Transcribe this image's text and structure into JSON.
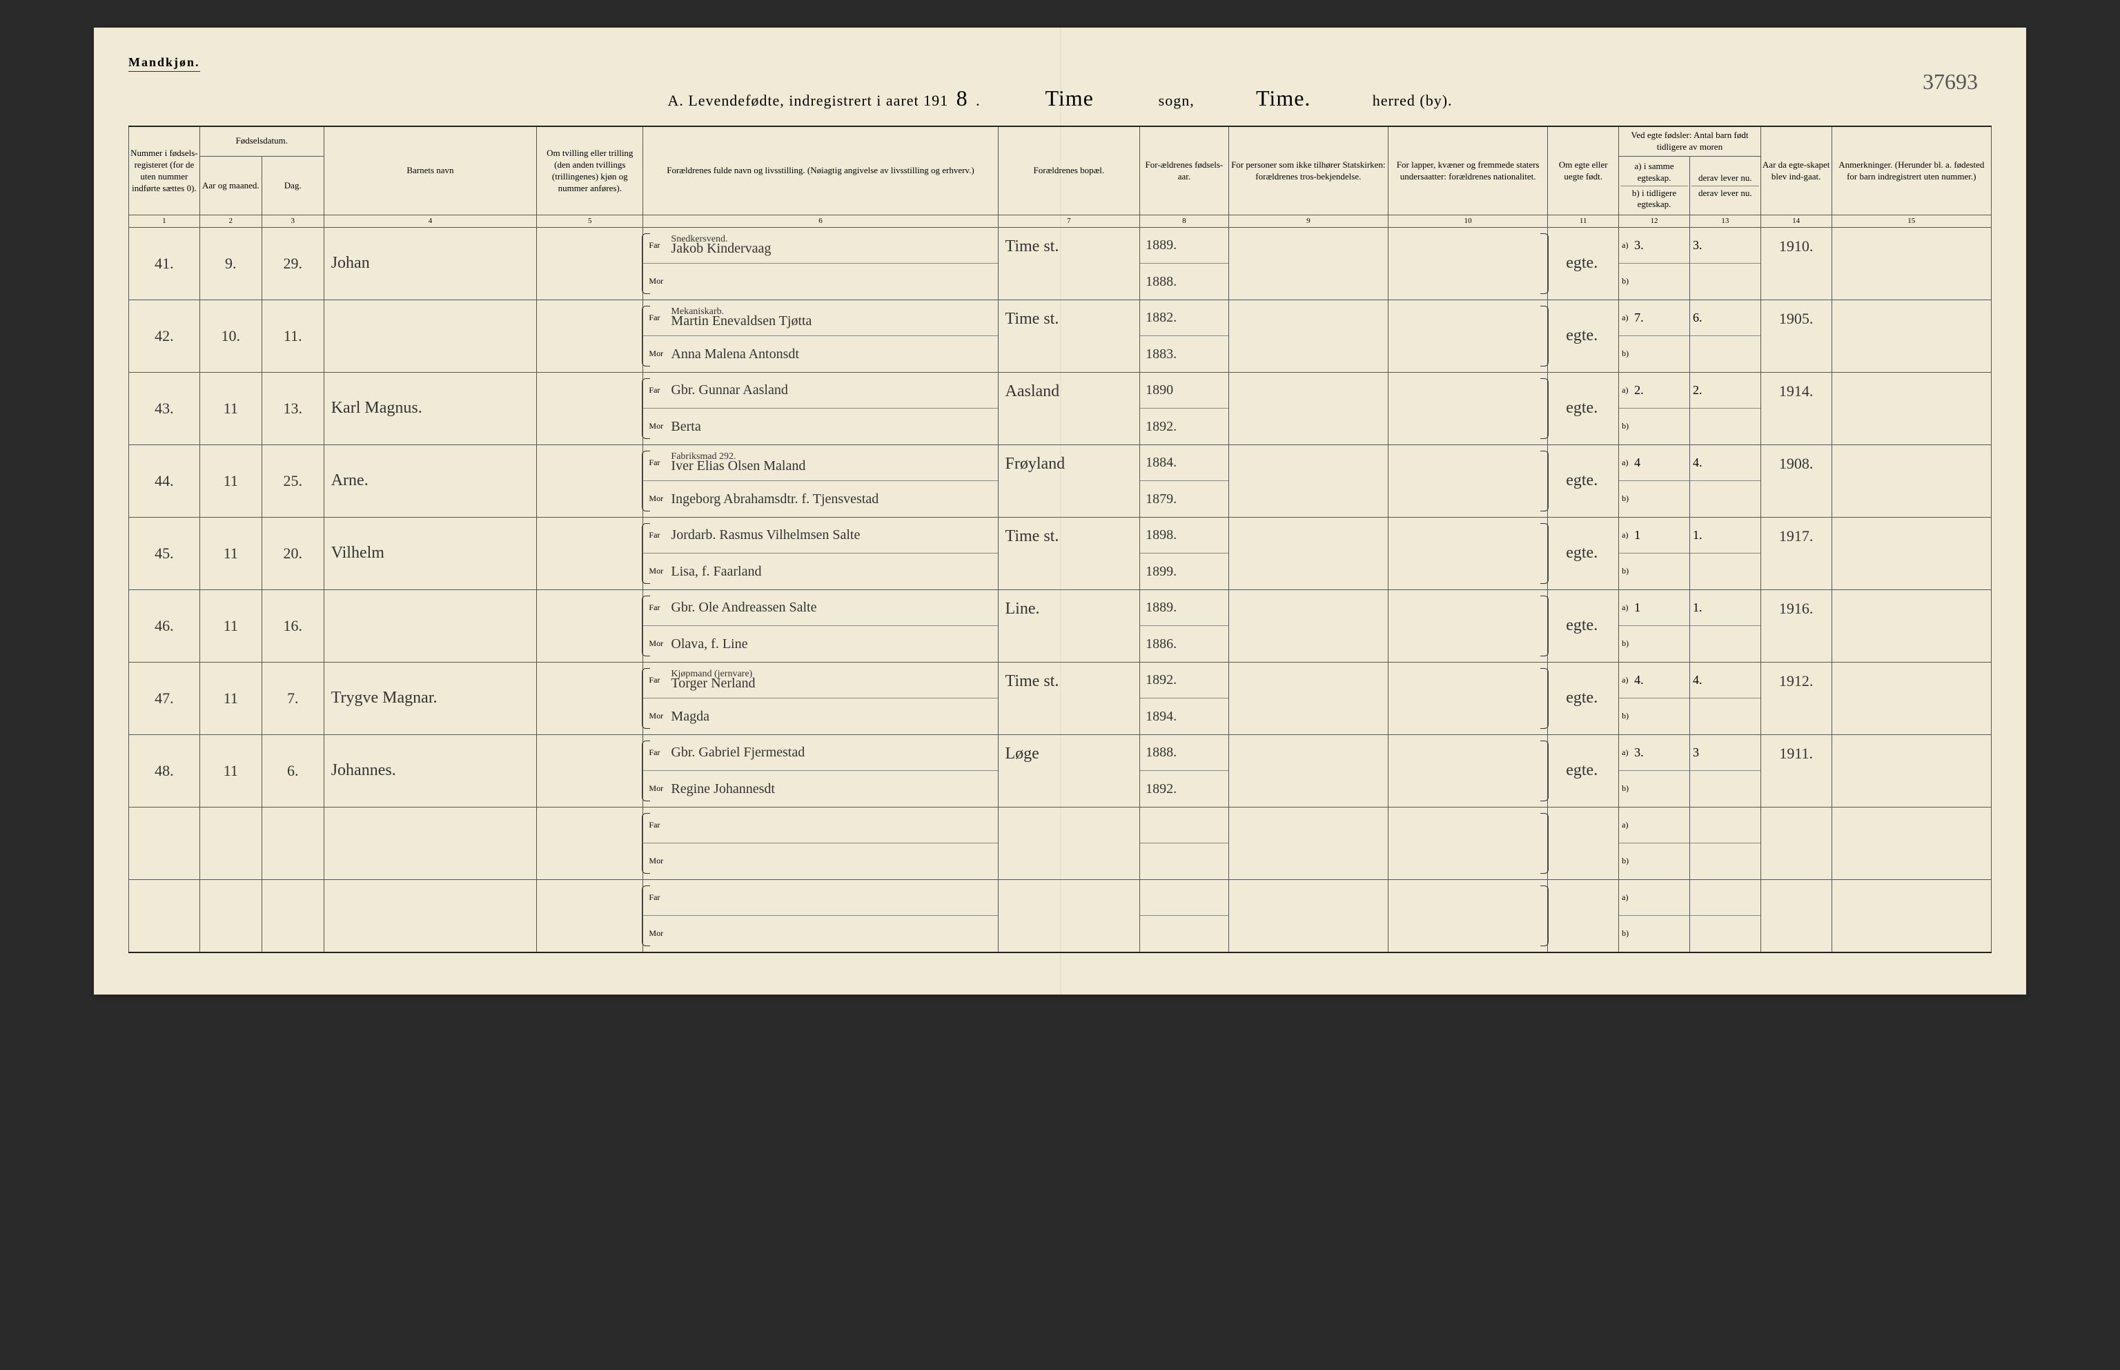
{
  "corner_label": "Mandkjøn.",
  "header": {
    "prefix": "A. Levendefødte, indregistrert i aaret 191",
    "year_suffix": "8",
    "sogn_value": "Time",
    "sogn_label": "sogn,",
    "herred_value": "Time.",
    "herred_label": "herred (by)."
  },
  "page_number": "37693",
  "columns": {
    "c1": "Nummer i fødsels-registeret (for de uten nummer indførte sættes 0).",
    "c2_group": "Fødselsdatum.",
    "c2": "Aar og maaned.",
    "c3": "Dag.",
    "c4": "Barnets navn",
    "c5": "Om tvilling eller trilling (den anden tvillings (trillingenes) kjøn og nummer anføres).",
    "c6": "Forældrenes fulde navn og livsstilling. (Nøiagtig angivelse av livsstilling og erhverv.)",
    "c7": "Forældrenes bopæl.",
    "c8": "For-ældrenes fødsels-aar.",
    "c9": "For personer som ikke tilhører Statskirken: forældrenes tros-bekjendelse.",
    "c10": "For lapper, kvæner og fremmede staters undersaatter: forældrenes nationalitet.",
    "c11": "Om egte eller uegte født.",
    "c12_group": "Ved egte fødsler: Antal barn født tidligere av moren",
    "c12a": "a) i samme egteskap.",
    "c12b": "b) i tidligere egteskap.",
    "c13a": "derav lever nu.",
    "c13b": "derav lever nu.",
    "c14": "Aar da egte-skapet blev ind-gaat.",
    "c15": "Anmerkninger. (Herunder bl. a. fødested for barn indregistrert uten nummer.)"
  },
  "colnums": [
    "1",
    "2",
    "3",
    "4",
    "5",
    "6",
    "7",
    "8",
    "9",
    "10",
    "11",
    "12",
    "13",
    "14",
    "15"
  ],
  "far_label": "Far",
  "mor_label": "Mor",
  "a_label": "a)",
  "b_label": "b)",
  "rows": [
    {
      "num": "41.",
      "month": "9.",
      "day": "29.",
      "name": "Johan",
      "far_occ": "Snedkersvend.",
      "far": "Jakob Kindervaag",
      "mor": "",
      "bopael": "Time st.",
      "far_year": "1889.",
      "mor_year": "1888.",
      "egte": "egte.",
      "a": "3.",
      "derav": "3.",
      "marriage": "1910."
    },
    {
      "num": "42.",
      "month": "10.",
      "day": "11.",
      "name": "",
      "far_occ": "Mekaniskarb.",
      "far": "Martin Enevaldsen Tjøtta",
      "mor": "Anna Malena Antonsdt",
      "bopael": "Time st.",
      "far_year": "1882.",
      "mor_year": "1883.",
      "egte": "egte.",
      "a": "7.",
      "derav": "6.",
      "marriage": "1905."
    },
    {
      "num": "43.",
      "month": "11",
      "day": "13.",
      "name": "Karl Magnus.",
      "far_occ": "",
      "far": "Gbr. Gunnar Aasland",
      "mor": "Berta",
      "bopael": "Aasland",
      "far_year": "1890",
      "mor_year": "1892.",
      "egte": "egte.",
      "a": "2.",
      "derav": "2.",
      "marriage": "1914."
    },
    {
      "num": "44.",
      "month": "11",
      "day": "25.",
      "name": "Arne.",
      "far_occ": "Fabriksmad 292.",
      "far": "Iver Elias Olsen Maland",
      "mor": "Ingeborg Abrahamsdtr. f. Tjensvestad",
      "bopael": "Frøyland",
      "far_year": "1884.",
      "mor_year": "1879.",
      "egte": "egte.",
      "a": "4",
      "derav": "4.",
      "marriage": "1908."
    },
    {
      "num": "45.",
      "month": "11",
      "day": "20.",
      "name": "Vilhelm",
      "far_occ": "",
      "far": "Jordarb. Rasmus Vilhelmsen Salte",
      "mor": "Lisa, f. Faarland",
      "bopael": "Time st.",
      "far_year": "1898.",
      "mor_year": "1899.",
      "egte": "egte.",
      "a": "1",
      "derav": "1.",
      "marriage": "1917."
    },
    {
      "num": "46.",
      "month": "11",
      "day": "16.",
      "name": "",
      "far_occ": "",
      "far": "Gbr. Ole Andreassen Salte",
      "mor": "Olava, f. Line",
      "bopael": "Line.",
      "far_year": "1889.",
      "mor_year": "1886.",
      "egte": "egte.",
      "a": "1",
      "derav": "1.",
      "marriage": "1916."
    },
    {
      "num": "47.",
      "month": "11",
      "day": "7.",
      "name": "Trygve Magnar.",
      "far_occ": "Kjøpmand (jernvare)",
      "far": "Torger Nerland",
      "mor": "Magda",
      "bopael": "Time st.",
      "far_year": "1892.",
      "mor_year": "1894.",
      "egte": "egte.",
      "a": "4.",
      "derav": "4.",
      "marriage": "1912."
    },
    {
      "num": "48.",
      "month": "11",
      "day": "6.",
      "name": "Johannes.",
      "far_occ": "",
      "far": "Gbr. Gabriel Fjermestad",
      "mor": "Regine Johannesdt",
      "bopael": "Løge",
      "far_year": "1888.",
      "mor_year": "1892.",
      "egte": "egte.",
      "a": "3.",
      "derav": "3",
      "marriage": "1911."
    },
    {
      "num": "",
      "month": "",
      "day": "",
      "name": "",
      "far_occ": "",
      "far": "",
      "mor": "",
      "bopael": "",
      "far_year": "",
      "mor_year": "",
      "egte": "",
      "a": "",
      "derav": "",
      "marriage": ""
    },
    {
      "num": "",
      "month": "",
      "day": "",
      "name": "",
      "far_occ": "",
      "far": "",
      "mor": "",
      "bopael": "",
      "far_year": "",
      "mor_year": "",
      "egte": "",
      "a": "",
      "derav": "",
      "marriage": ""
    }
  ]
}
